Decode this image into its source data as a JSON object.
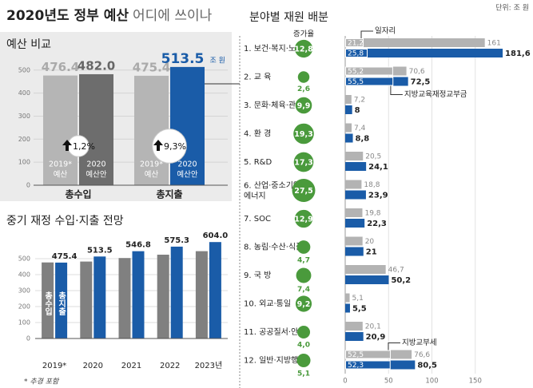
{
  "title": [
    "2020년도 정부 예산",
    "어디에 쓰이나"
  ],
  "footnote": "* 추경 포함",
  "chart_data": [
    {
      "type": "group-bar",
      "title": "예산 비교",
      "categories": [
        "총수입",
        "총지출"
      ],
      "series": [
        {
          "name": [
            "2019*",
            "예산"
          ],
          "color": "#b5b5b5",
          "values": [
            476.4,
            475.4
          ]
        },
        {
          "name": [
            "2020",
            "예산안"
          ],
          "colors": [
            "#6d6d6d",
            "#1a5ca8"
          ],
          "values": [
            482.0,
            513.5
          ],
          "value_labels": [
            "482.0",
            "513.5"
          ]
        }
      ],
      "value_unit": "조 원",
      "growth": [
        1.2,
        9.3
      ],
      "growth_labels": [
        "1,2%",
        "9,3%"
      ],
      "ylim": [
        0,
        520
      ],
      "yticks": [
        0,
        100,
        200,
        300,
        400,
        500
      ],
      "grid": true
    },
    {
      "type": "bar",
      "title": "중기 재정 수입·지출 전망",
      "categories": [
        "2019*",
        "2020",
        "2021",
        "2022",
        "2023년"
      ],
      "series": [
        {
          "name": "총수입",
          "color": "#808080",
          "values": [
            476.4,
            482.0,
            504,
            525,
            547
          ]
        },
        {
          "name": "총지출",
          "color": "#1a5ca8",
          "values": [
            475.4,
            513.5,
            546.8,
            575.3,
            604.0
          ],
          "value_labels": [
            "475.4",
            "513.5",
            "546.8",
            "575.3",
            "604.0"
          ]
        }
      ],
      "ylim": [
        0,
        620
      ],
      "yticks": [
        0,
        100,
        200,
        300,
        400,
        500
      ],
      "grid": true
    },
    {
      "type": "hbar",
      "title": "분야별 재원 배분",
      "unit_label": "단위: 조 원",
      "growth_header": "증가율",
      "categories": [
        "1. 보건·복지·노동",
        "2. 교 육",
        "3. 문화·체육·관광",
        "4. 환 경",
        "5. R&D",
        [
          "6. 산업·중소기업·",
          "에너지"
        ],
        "7. SOC",
        "8. 농림·수산·식품",
        "9. 국 방",
        "10. 외교·통일",
        "11. 공공질서·안전",
        "12. 일반·지방행정"
      ],
      "series": [
        {
          "color": "#b3b3b3",
          "values": [
            161,
            70.6,
            7.2,
            7.4,
            20.5,
            18.8,
            19.8,
            20,
            46.7,
            5.1,
            20.1,
            76.6
          ],
          "value_labels": [
            "161",
            "70,6",
            "7,2",
            "7,4",
            "20,5",
            "18,8",
            "19,8",
            "20",
            "46,7",
            "5,1",
            "20,1",
            "76,6"
          ]
        },
        {
          "color": "#1a5ca8",
          "values": [
            181.6,
            72.5,
            8,
            8.8,
            24.1,
            23.9,
            22.3,
            21,
            50.2,
            5.5,
            20.9,
            80.5
          ],
          "value_labels": [
            "181,6",
            "72,5",
            "8",
            "8,8",
            "24,1",
            "23,9",
            "22,3",
            "21",
            "50,2",
            "5,5",
            "20,9",
            "80,5"
          ]
        }
      ],
      "growth": [
        12.8,
        2.6,
        9.9,
        19.3,
        17.3,
        27.5,
        12.9,
        4.7,
        7.4,
        9.2,
        4.0,
        5.1
      ],
      "growth_labels": [
        "12,8",
        "2,6",
        "9,9",
        "19,3",
        "17,3",
        "27,5",
        "12,9",
        "4,7",
        "7,4",
        "9,2",
        "4,0",
        "5,1"
      ],
      "growth_color": "#4a9a3c",
      "sub_bars": [
        {
          "label": "일자리",
          "values": [
            21.2,
            25.8
          ],
          "value_labels": [
            "21,2",
            "25,8"
          ]
        },
        {
          "label": "지방교육재정교부금",
          "values": [
            55.2,
            55.5
          ],
          "value_labels": [
            "55,2",
            "55,5"
          ]
        },
        {
          "label": "지방교부세",
          "values": [
            52.5,
            52.3
          ],
          "value_labels": [
            "52,5",
            "52,3"
          ]
        }
      ],
      "xlim": [
        0,
        200
      ],
      "xticks": [
        0,
        50,
        100,
        150
      ],
      "grid": true
    }
  ]
}
